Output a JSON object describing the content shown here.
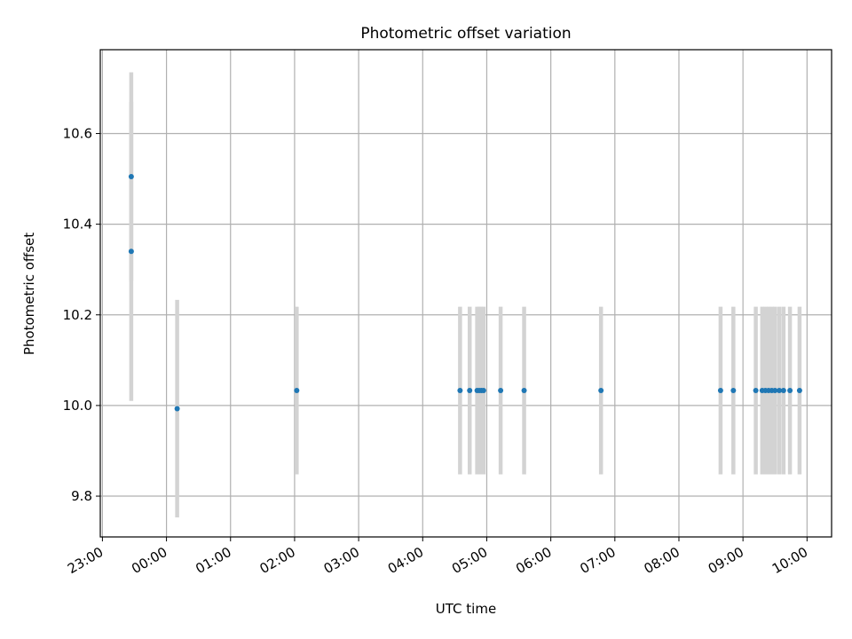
{
  "chart_data": {
    "type": "scatter",
    "title": "Photometric offset variation",
    "xlabel": "UTC time",
    "ylabel": "Photometric offset",
    "x_tick_labels": [
      "23:00",
      "00:00",
      "01:00",
      "02:00",
      "03:00",
      "04:00",
      "05:00",
      "06:00",
      "07:00",
      "08:00",
      "09:00",
      "10:00"
    ],
    "y_ticks": [
      9.8,
      10.0,
      10.2,
      10.4,
      10.6
    ],
    "y_tick_labels": [
      "9.8",
      "10.0",
      "10.2",
      "10.4",
      "10.6"
    ],
    "xlim": [
      "22:58",
      "10:23"
    ],
    "ylim": [
      9.71,
      10.785
    ],
    "grid": true,
    "colors": {
      "points": "#1f77b4",
      "errorbars": "#d3d3d3",
      "grid": "#b0b0b0"
    },
    "points": [
      {
        "time": "23:27",
        "offset": 10.505,
        "err": 0.23
      },
      {
        "time": "23:27",
        "offset": 10.34,
        "err": 0.33
      },
      {
        "time": "00:10",
        "offset": 9.993,
        "err": 0.24
      },
      {
        "time": "02:02",
        "offset": 10.033,
        "err": 0.185
      },
      {
        "time": "04:35",
        "offset": 10.033,
        "err": 0.185
      },
      {
        "time": "04:44",
        "offset": 10.033,
        "err": 0.185
      },
      {
        "time": "04:51",
        "offset": 10.033,
        "err": 0.185
      },
      {
        "time": "04:53",
        "offset": 10.033,
        "err": 0.185
      },
      {
        "time": "04:55",
        "offset": 10.033,
        "err": 0.185
      },
      {
        "time": "04:57",
        "offset": 10.033,
        "err": 0.185
      },
      {
        "time": "05:13",
        "offset": 10.033,
        "err": 0.185
      },
      {
        "time": "05:35",
        "offset": 10.033,
        "err": 0.185
      },
      {
        "time": "06:47",
        "offset": 10.033,
        "err": 0.185
      },
      {
        "time": "08:39",
        "offset": 10.033,
        "err": 0.185
      },
      {
        "time": "08:51",
        "offset": 10.033,
        "err": 0.185
      },
      {
        "time": "09:12",
        "offset": 10.033,
        "err": 0.185
      },
      {
        "time": "09:18",
        "offset": 10.033,
        "err": 0.185
      },
      {
        "time": "09:21",
        "offset": 10.033,
        "err": 0.185
      },
      {
        "time": "09:24",
        "offset": 10.033,
        "err": 0.185
      },
      {
        "time": "09:27",
        "offset": 10.033,
        "err": 0.185
      },
      {
        "time": "09:30",
        "offset": 10.033,
        "err": 0.185
      },
      {
        "time": "09:34",
        "offset": 10.033,
        "err": 0.185
      },
      {
        "time": "09:38",
        "offset": 10.033,
        "err": 0.185
      },
      {
        "time": "09:44",
        "offset": 10.033,
        "err": 0.185
      },
      {
        "time": "09:53",
        "offset": 10.033,
        "err": 0.185
      }
    ]
  }
}
